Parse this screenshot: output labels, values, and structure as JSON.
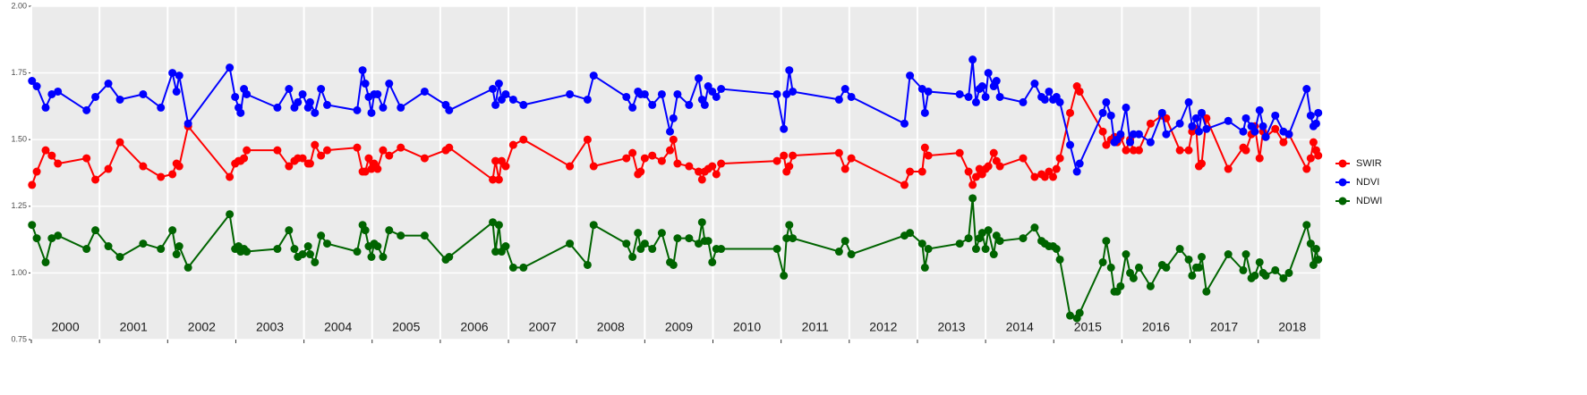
{
  "chart_data": {
    "type": "line",
    "x": [
      2000.01,
      2000.08,
      2000.21,
      2000.3,
      2000.39,
      2000.81,
      2000.94,
      2001.13,
      2001.3,
      2001.64,
      2001.9,
      2002.07,
      2002.13,
      2002.17,
      2002.3,
      2002.91,
      2002.99,
      2003.04,
      2003.07,
      2003.12,
      2003.16,
      2003.61,
      2003.78,
      2003.86,
      2003.91,
      2003.98,
      2004.06,
      2004.09,
      2004.16,
      2004.25,
      2004.34,
      2004.78,
      2004.86,
      2004.9,
      2004.95,
      2004.99,
      2005.03,
      2005.08,
      2005.16,
      2005.25,
      2005.42,
      2005.77,
      2006.08,
      2006.13,
      2006.77,
      2006.81,
      2006.86,
      2006.9,
      2006.96,
      2007.07,
      2007.22,
      2007.9,
      2008.16,
      2008.25,
      2008.73,
      2008.82,
      2008.9,
      2008.94,
      2009.0,
      2009.11,
      2009.25,
      2009.37,
      2009.42,
      2009.48,
      2009.65,
      2009.79,
      2009.84,
      2009.88,
      2009.93,
      2009.99,
      2010.05,
      2010.12,
      2010.94,
      2011.04,
      2011.08,
      2011.12,
      2011.17,
      2011.85,
      2011.94,
      2012.03,
      2012.81,
      2012.89,
      2013.07,
      2013.11,
      2013.16,
      2013.62,
      2013.75,
      2013.81,
      2013.86,
      2013.91,
      2013.95,
      2014.0,
      2014.04,
      2014.12,
      2014.16,
      2014.21,
      2014.55,
      2014.72,
      2014.82,
      2014.87,
      2014.93,
      2014.99,
      2015.04,
      2015.09,
      2015.24,
      2015.34,
      2015.38,
      2015.72,
      2015.77,
      2015.84,
      2015.89,
      2015.93,
      2015.98,
      2016.06,
      2016.12,
      2016.17,
      2016.25,
      2016.42,
      2016.59,
      2016.65,
      2016.85,
      2016.98,
      2017.03,
      2017.09,
      2017.13,
      2017.17,
      2017.24,
      2017.56,
      2017.78,
      2017.82,
      2017.9,
      2017.95,
      2018.02,
      2018.07,
      2018.11,
      2018.25,
      2018.37,
      2018.45,
      2018.71,
      2018.77,
      2018.81,
      2018.85,
      2018.88
    ],
    "series": [
      {
        "name": "SWIR",
        "color": "#ff0000",
        "values": [
          1.33,
          1.38,
          1.46,
          1.44,
          1.41,
          1.43,
          1.35,
          1.39,
          1.49,
          1.4,
          1.36,
          1.37,
          1.41,
          1.4,
          1.55,
          1.36,
          1.41,
          1.42,
          1.42,
          1.43,
          1.46,
          1.46,
          1.4,
          1.42,
          1.43,
          1.43,
          1.41,
          1.41,
          1.48,
          1.44,
          1.46,
          1.47,
          1.38,
          1.38,
          1.43,
          1.39,
          1.41,
          1.39,
          1.46,
          1.44,
          1.47,
          1.43,
          1.46,
          1.47,
          1.35,
          1.42,
          1.35,
          1.42,
          1.4,
          1.48,
          1.5,
          1.4,
          1.5,
          1.4,
          1.43,
          1.45,
          1.37,
          1.38,
          1.43,
          1.44,
          1.42,
          1.46,
          1.5,
          1.41,
          1.4,
          1.38,
          1.35,
          1.38,
          1.39,
          1.4,
          1.37,
          1.41,
          1.42,
          1.44,
          1.38,
          1.4,
          1.44,
          1.45,
          1.39,
          1.43,
          1.33,
          1.38,
          1.38,
          1.47,
          1.44,
          1.45,
          1.38,
          1.33,
          1.36,
          1.39,
          1.37,
          1.39,
          1.4,
          1.45,
          1.42,
          1.4,
          1.43,
          1.36,
          1.37,
          1.36,
          1.38,
          1.36,
          1.39,
          1.43,
          1.6,
          1.7,
          1.68,
          1.53,
          1.48,
          1.5,
          1.51,
          1.49,
          1.51,
          1.46,
          1.5,
          1.46,
          1.46,
          1.56,
          1.59,
          1.58,
          1.46,
          1.46,
          1.53,
          1.54,
          1.4,
          1.41,
          1.58,
          1.39,
          1.47,
          1.46,
          1.52,
          1.55,
          1.43,
          1.53,
          1.51,
          1.54,
          1.49,
          1.52,
          1.39,
          1.43,
          1.49,
          1.46,
          1.44
        ]
      },
      {
        "name": "NDVI",
        "color": "#0000ff",
        "values": [
          1.72,
          1.7,
          1.62,
          1.67,
          1.68,
          1.61,
          1.66,
          1.71,
          1.65,
          1.67,
          1.62,
          1.75,
          1.68,
          1.74,
          1.56,
          1.77,
          1.66,
          1.62,
          1.6,
          1.69,
          1.67,
          1.62,
          1.69,
          1.62,
          1.64,
          1.67,
          1.62,
          1.64,
          1.6,
          1.69,
          1.63,
          1.61,
          1.76,
          1.71,
          1.66,
          1.6,
          1.67,
          1.67,
          1.62,
          1.71,
          1.62,
          1.68,
          1.63,
          1.61,
          1.69,
          1.63,
          1.71,
          1.65,
          1.67,
          1.65,
          1.63,
          1.67,
          1.65,
          1.74,
          1.66,
          1.62,
          1.68,
          1.67,
          1.67,
          1.63,
          1.67,
          1.53,
          1.58,
          1.67,
          1.63,
          1.73,
          1.65,
          1.63,
          1.7,
          1.68,
          1.66,
          1.69,
          1.67,
          1.54,
          1.67,
          1.76,
          1.68,
          1.65,
          1.69,
          1.66,
          1.56,
          1.74,
          1.69,
          1.6,
          1.68,
          1.67,
          1.66,
          1.8,
          1.64,
          1.69,
          1.7,
          1.66,
          1.75,
          1.7,
          1.72,
          1.66,
          1.64,
          1.71,
          1.66,
          1.65,
          1.68,
          1.65,
          1.66,
          1.64,
          1.48,
          1.38,
          1.41,
          1.6,
          1.64,
          1.59,
          1.49,
          1.5,
          1.52,
          1.62,
          1.49,
          1.52,
          1.52,
          1.49,
          1.6,
          1.52,
          1.56,
          1.64,
          1.55,
          1.58,
          1.53,
          1.6,
          1.54,
          1.57,
          1.53,
          1.58,
          1.55,
          1.53,
          1.61,
          1.55,
          1.51,
          1.59,
          1.53,
          1.52,
          1.69,
          1.59,
          1.55,
          1.56,
          1.6
        ]
      },
      {
        "name": "NDWI",
        "color": "#006400",
        "values": [
          1.18,
          1.13,
          1.04,
          1.13,
          1.14,
          1.09,
          1.16,
          1.1,
          1.06,
          1.11,
          1.09,
          1.16,
          1.07,
          1.1,
          1.02,
          1.22,
          1.09,
          1.1,
          1.08,
          1.09,
          1.08,
          1.09,
          1.16,
          1.09,
          1.06,
          1.07,
          1.1,
          1.07,
          1.04,
          1.14,
          1.11,
          1.08,
          1.18,
          1.16,
          1.1,
          1.06,
          1.11,
          1.1,
          1.06,
          1.16,
          1.14,
          1.14,
          1.05,
          1.06,
          1.19,
          1.08,
          1.18,
          1.08,
          1.1,
          1.02,
          1.02,
          1.11,
          1.03,
          1.18,
          1.11,
          1.06,
          1.15,
          1.09,
          1.11,
          1.09,
          1.15,
          1.04,
          1.03,
          1.13,
          1.13,
          1.11,
          1.19,
          1.12,
          1.12,
          1.04,
          1.09,
          1.09,
          1.09,
          0.99,
          1.13,
          1.18,
          1.13,
          1.08,
          1.12,
          1.07,
          1.14,
          1.15,
          1.11,
          1.02,
          1.09,
          1.11,
          1.13,
          1.28,
          1.09,
          1.13,
          1.15,
          1.09,
          1.16,
          1.07,
          1.14,
          1.12,
          1.13,
          1.17,
          1.12,
          1.11,
          1.1,
          1.1,
          1.09,
          1.05,
          0.84,
          0.83,
          0.85,
          1.04,
          1.12,
          1.02,
          0.93,
          0.93,
          0.95,
          1.07,
          1.0,
          0.98,
          1.02,
          0.95,
          1.03,
          1.02,
          1.09,
          1.05,
          0.99,
          1.02,
          1.02,
          1.06,
          0.93,
          1.07,
          1.01,
          1.07,
          0.98,
          0.99,
          1.04,
          1.0,
          0.99,
          1.01,
          0.98,
          1.0,
          1.18,
          1.11,
          1.03,
          1.09,
          1.05
        ]
      }
    ],
    "xlim": [
      2000,
      2018.91
    ],
    "xticks": [
      2000,
      2001,
      2002,
      2003,
      2004,
      2005,
      2006,
      2007,
      2008,
      2009,
      2010,
      2011,
      2012,
      2013,
      2014,
      2015,
      2016,
      2017,
      2018
    ],
    "ylim": [
      0.75,
      2.0
    ],
    "yticks": [
      {
        "value": 0.75,
        "label": "0.75"
      },
      {
        "value": 1.0,
        "label": "1.00"
      },
      {
        "value": 1.25,
        "label": "1.25"
      },
      {
        "value": 1.5,
        "label": "1.50"
      },
      {
        "value": 1.75,
        "label": "1.75"
      },
      {
        "value": 2.0,
        "label": "2.00"
      }
    ],
    "grid": true,
    "legend": "right"
  }
}
